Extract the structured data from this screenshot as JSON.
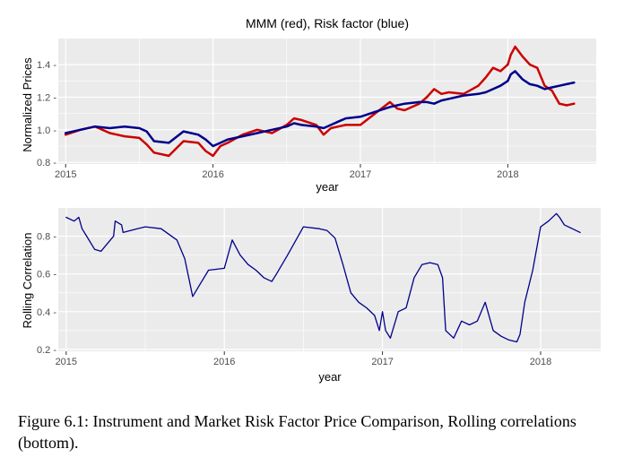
{
  "caption": "Figure 6.1: Instrument and Market Risk Factor Price Comparison, Rolling correlations (bottom).",
  "chart_data": [
    {
      "type": "line",
      "title": "MMM (red), Risk factor (blue)",
      "xlabel": "year",
      "ylabel": "Normalized Prices",
      "xlim": [
        2014.95,
        2018.6
      ],
      "ylim": [
        0.79,
        1.56
      ],
      "x_ticks": [
        2015,
        2016,
        2017,
        2018
      ],
      "y_ticks": [
        0.8,
        1.0,
        1.2,
        1.4
      ],
      "x_tick_labels": [
        "2015",
        "2016",
        "2017",
        "2018"
      ],
      "y_tick_labels": [
        "0.8 -",
        "1.0 -",
        "1.2 -",
        "1.4 -"
      ],
      "grid": true,
      "colors": {
        "panel": "#ebebeb",
        "grid": "#ffffff",
        "red": "#cc0000",
        "blue": "#00008b"
      },
      "series": [
        {
          "color": "#cc0000",
          "x": [
            2015.0,
            2015.1,
            2015.2,
            2015.3,
            2015.4,
            2015.5,
            2015.55,
            2015.6,
            2015.7,
            2015.8,
            2015.9,
            2015.95,
            2016.0,
            2016.05,
            2016.1,
            2016.2,
            2016.3,
            2016.4,
            2016.5,
            2016.55,
            2016.6,
            2016.7,
            2016.75,
            2016.8,
            2016.85,
            2016.9,
            2017.0,
            2017.1,
            2017.2,
            2017.25,
            2017.3,
            2017.4,
            2017.45,
            2017.5,
            2017.55,
            2017.6,
            2017.7,
            2017.8,
            2017.85,
            2017.9,
            2017.95,
            2018.0,
            2018.02,
            2018.05,
            2018.1,
            2018.15,
            2018.2,
            2018.25,
            2018.3,
            2018.35,
            2018.4,
            2018.45
          ],
          "y": [
            0.97,
            1.0,
            1.02,
            0.98,
            0.96,
            0.95,
            0.91,
            0.86,
            0.84,
            0.93,
            0.92,
            0.87,
            0.84,
            0.9,
            0.92,
            0.97,
            1.0,
            0.98,
            1.03,
            1.07,
            1.06,
            1.03,
            0.97,
            1.01,
            1.02,
            1.03,
            1.03,
            1.1,
            1.17,
            1.13,
            1.12,
            1.16,
            1.2,
            1.25,
            1.22,
            1.23,
            1.22,
            1.27,
            1.32,
            1.38,
            1.36,
            1.4,
            1.46,
            1.51,
            1.45,
            1.4,
            1.38,
            1.27,
            1.24,
            1.16,
            1.15,
            1.16
          ]
        },
        {
          "color": "#00008b",
          "x": [
            2015.0,
            2015.1,
            2015.2,
            2015.3,
            2015.4,
            2015.5,
            2015.55,
            2015.6,
            2015.7,
            2015.8,
            2015.9,
            2015.95,
            2016.0,
            2016.05,
            2016.1,
            2016.2,
            2016.3,
            2016.4,
            2016.5,
            2016.55,
            2016.6,
            2016.7,
            2016.75,
            2016.8,
            2016.85,
            2016.9,
            2017.0,
            2017.1,
            2017.2,
            2017.25,
            2017.3,
            2017.4,
            2017.45,
            2017.5,
            2017.55,
            2017.6,
            2017.7,
            2017.8,
            2017.85,
            2017.9,
            2017.95,
            2018.0,
            2018.02,
            2018.05,
            2018.1,
            2018.15,
            2018.2,
            2018.25,
            2018.3,
            2018.35,
            2018.4,
            2018.45
          ],
          "y": [
            0.98,
            1.0,
            1.02,
            1.01,
            1.02,
            1.01,
            0.99,
            0.93,
            0.92,
            0.99,
            0.97,
            0.94,
            0.9,
            0.92,
            0.94,
            0.96,
            0.98,
            1.0,
            1.02,
            1.04,
            1.03,
            1.02,
            1.01,
            1.03,
            1.05,
            1.07,
            1.08,
            1.11,
            1.14,
            1.15,
            1.16,
            1.17,
            1.17,
            1.16,
            1.18,
            1.19,
            1.21,
            1.22,
            1.23,
            1.25,
            1.27,
            1.3,
            1.34,
            1.36,
            1.31,
            1.28,
            1.27,
            1.25,
            1.26,
            1.27,
            1.28,
            1.29
          ]
        }
      ]
    },
    {
      "type": "line",
      "title": "",
      "xlabel": "year",
      "ylabel": "Rolling Correlation",
      "xlim": [
        2014.95,
        2018.38
      ],
      "ylim": [
        0.19,
        0.95
      ],
      "x_ticks": [
        2015,
        2016,
        2017,
        2018
      ],
      "y_ticks": [
        0.2,
        0.4,
        0.6,
        0.8
      ],
      "x_tick_labels": [
        "2015",
        "2016",
        "2017",
        "2018"
      ],
      "y_tick_labels": [
        "0.2 -",
        "0.4 -",
        "0.6 -",
        "0.8 -"
      ],
      "grid": true,
      "colors": {
        "panel": "#ebebeb",
        "grid": "#ffffff",
        "line": "#00008b"
      },
      "series": [
        {
          "color": "#00008b",
          "x": [
            2015.0,
            2015.05,
            2015.08,
            2015.1,
            2015.13,
            2015.18,
            2015.22,
            2015.25,
            2015.3,
            2015.31,
            2015.35,
            2015.36,
            2015.45,
            2015.5,
            2015.6,
            2015.7,
            2015.75,
            2015.8,
            2015.85,
            2015.9,
            2016.0,
            2016.05,
            2016.1,
            2016.15,
            2016.2,
            2016.25,
            2016.3,
            2016.33,
            2016.4,
            2016.5,
            2016.6,
            2016.65,
            2016.7,
            2016.75,
            2016.8,
            2016.85,
            2016.9,
            2016.95,
            2016.98,
            2017.0,
            2017.02,
            2017.05,
            2017.1,
            2017.15,
            2017.2,
            2017.25,
            2017.3,
            2017.35,
            2017.38,
            2017.4,
            2017.45,
            2017.5,
            2017.55,
            2017.6,
            2017.65,
            2017.7,
            2017.75,
            2017.8,
            2017.85,
            2017.87,
            2017.9,
            2017.95,
            2018.0,
            2018.05,
            2018.1,
            2018.12,
            2018.15,
            2018.2,
            2018.25
          ],
          "y": [
            0.9,
            0.88,
            0.9,
            0.84,
            0.8,
            0.73,
            0.72,
            0.75,
            0.8,
            0.88,
            0.86,
            0.82,
            0.84,
            0.85,
            0.84,
            0.78,
            0.68,
            0.48,
            0.55,
            0.62,
            0.63,
            0.78,
            0.7,
            0.65,
            0.62,
            0.58,
            0.56,
            0.6,
            0.7,
            0.85,
            0.84,
            0.83,
            0.79,
            0.65,
            0.5,
            0.45,
            0.42,
            0.38,
            0.3,
            0.4,
            0.3,
            0.26,
            0.4,
            0.42,
            0.58,
            0.65,
            0.66,
            0.65,
            0.58,
            0.3,
            0.26,
            0.35,
            0.33,
            0.35,
            0.45,
            0.3,
            0.27,
            0.25,
            0.24,
            0.28,
            0.45,
            0.62,
            0.85,
            0.88,
            0.92,
            0.9,
            0.86,
            0.84,
            0.82
          ]
        }
      ]
    }
  ]
}
